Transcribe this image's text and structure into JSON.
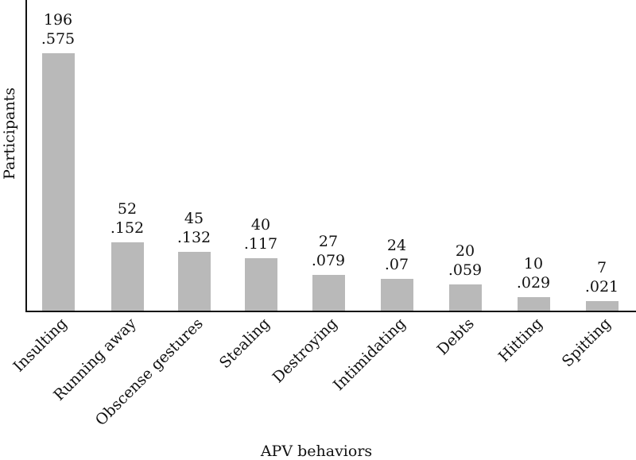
{
  "chart_data": {
    "type": "bar",
    "title": "",
    "xlabel": "APV behaviors",
    "ylabel": "Participants",
    "categories": [
      "Insulting",
      "Running away",
      "Obscense gestures",
      "Stealing",
      "Destroying",
      "Intimidating",
      "Debts",
      "Hitting",
      "Spitting"
    ],
    "series": [
      {
        "name": "Count",
        "values": [
          196,
          52,
          45,
          40,
          27,
          24,
          20,
          10,
          7
        ]
      },
      {
        "name": "Proportion",
        "values": [
          ".575",
          ".152",
          ".132",
          ".117",
          ".079",
          ".07",
          ".059",
          ".029",
          ".021"
        ]
      }
    ],
    "ylim": [
      0,
      196
    ],
    "grid": false,
    "legend": "none",
    "bar_color": "#b9b9b9"
  },
  "bars": [
    {
      "label": "Insulting",
      "count": "196",
      "prop": ".575"
    },
    {
      "label": "Running away",
      "count": "52",
      "prop": ".152"
    },
    {
      "label": "Obscense gestures",
      "count": "45",
      "prop": ".132"
    },
    {
      "label": "Stealing",
      "count": "40",
      "prop": ".117"
    },
    {
      "label": "Destroying",
      "count": "27",
      "prop": ".079"
    },
    {
      "label": "Intimidating",
      "count": "24",
      "prop": ".07"
    },
    {
      "label": "Debts",
      "count": "20",
      "prop": ".059"
    },
    {
      "label": "Hitting",
      "count": "10",
      "prop": ".029"
    },
    {
      "label": "Spitting",
      "count": "7",
      "prop": ".021"
    }
  ],
  "axes": {
    "x_title": "APV behaviors",
    "y_title": "Participants"
  }
}
